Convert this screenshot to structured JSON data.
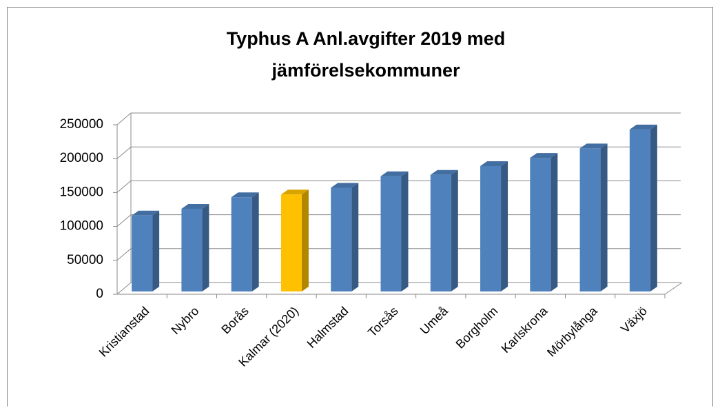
{
  "chart_data": {
    "type": "bar",
    "title": "Typhus A Anl.avgifter 2019 med",
    "subtitle": "jämförelsekommuner",
    "categories": [
      "Kristianstad",
      "Nybro",
      "Borås",
      "Kalmar (2020)",
      "Halmstad",
      "Torsås",
      "Umeå",
      "Borgholm",
      "Karlskrona",
      "Mörbylånga",
      "Växjö"
    ],
    "values": [
      112000,
      122000,
      139000,
      143000,
      153000,
      170000,
      172000,
      185000,
      197000,
      211000,
      239000
    ],
    "colors": [
      "#4f81bd",
      "#4f81bd",
      "#4f81bd",
      "#ffc000",
      "#4f81bd",
      "#4f81bd",
      "#4f81bd",
      "#4f81bd",
      "#4f81bd",
      "#4f81bd",
      "#4f81bd"
    ],
    "ylim": [
      0,
      250000
    ],
    "yticks": [
      0,
      50000,
      100000,
      150000,
      200000,
      250000
    ],
    "grid": true
  }
}
